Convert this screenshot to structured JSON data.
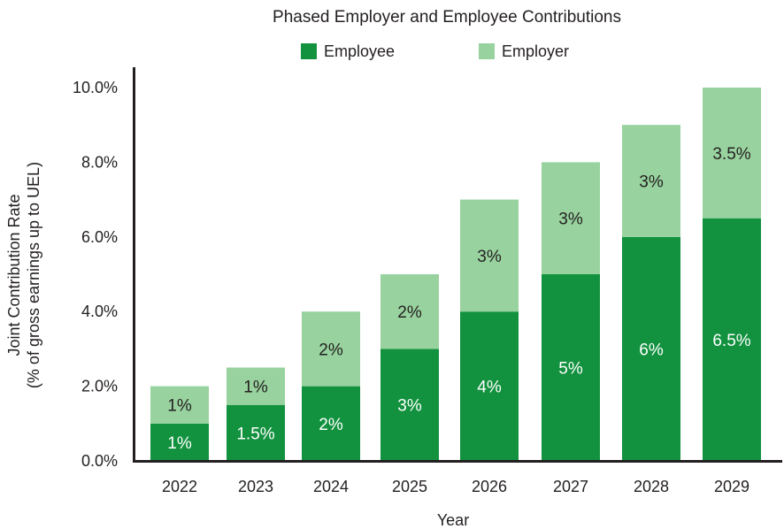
{
  "chart_data": {
    "type": "bar",
    "stacked": true,
    "title": "Phased Employer and Employee Contributions",
    "xlabel": "Year",
    "ylabel": [
      "Joint Contribution Rate",
      "(% of gross earnings up to UEL)"
    ],
    "categories": [
      "2022",
      "2023",
      "2024",
      "2025",
      "2026",
      "2027",
      "2028",
      "2029"
    ],
    "ylim": [
      0,
      10
    ],
    "yticks": [
      "0.0%",
      "2.0%",
      "4.0%",
      "6.0%",
      "8.0%",
      "10.0%"
    ],
    "grid": false,
    "legend_position": "top-center",
    "series": [
      {
        "name": "Employee",
        "color": "#12923f",
        "label_color": "#ffffff",
        "values": [
          1,
          1.5,
          2,
          3,
          4,
          5,
          6,
          6.5
        ],
        "labels": [
          "1%",
          "1.5%",
          "2%",
          "3%",
          "4%",
          "5%",
          "6%",
          "6.5%"
        ]
      },
      {
        "name": "Employer",
        "color": "#98d29e",
        "label_color": "#231f20",
        "values": [
          1,
          1,
          2,
          2,
          3,
          3,
          3,
          3.5
        ],
        "labels": [
          "1%",
          "1%",
          "2%",
          "2%",
          "3%",
          "3%",
          "3%",
          "3.5%"
        ]
      }
    ]
  }
}
